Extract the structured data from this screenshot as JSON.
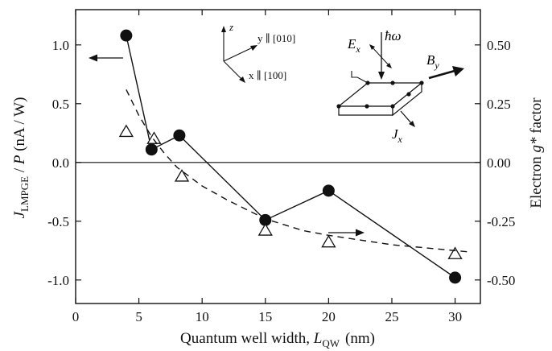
{
  "chart_data": {
    "type": "scatter",
    "x_axis": {
      "label_prefix": "Quantum well width, ",
      "label_var": "L",
      "label_sub": "QW",
      "label_unit": "(nm)",
      "range": [
        0,
        32
      ],
      "ticks": [
        0,
        5,
        10,
        15,
        20,
        25,
        30
      ]
    },
    "y_axis_left": {
      "label_var": "J",
      "label_sub": "LMPGE",
      "label_rest": " / ",
      "label_var2": "P",
      "label_unit": " (nA / W)",
      "range": [
        -1.2,
        1.3
      ],
      "ticks": [
        1.0,
        0.5,
        0.0,
        -0.5,
        -1.0
      ],
      "tick_labels": [
        "1.0",
        "0.5",
        "0.0",
        "-0.5",
        "-1.0"
      ]
    },
    "y_axis_right": {
      "label_prefix": "Electron ",
      "label_var": "g*",
      "label_suffix": " factor",
      "range": [
        -0.6,
        0.65
      ],
      "ticks": [
        0.5,
        0.25,
        0.0,
        -0.25,
        -0.5
      ],
      "tick_labels": [
        "0.50",
        "0.25",
        "0.00",
        "-0.25",
        "-0.50"
      ]
    },
    "series": [
      {
        "marker": "filled-circle",
        "axis": "left",
        "line": "solid",
        "color": "#111111",
        "points": [
          [
            4,
            1.08
          ],
          [
            6,
            0.11
          ],
          [
            8.2,
            0.23
          ],
          [
            15,
            -0.49
          ],
          [
            20,
            -0.24
          ],
          [
            30,
            -0.98
          ]
        ]
      },
      {
        "marker": "open-triangle",
        "axis": "right",
        "line": "none",
        "color": "#111111",
        "points": [
          [
            4,
            0.13
          ],
          [
            6.2,
            0.1
          ],
          [
            8.4,
            -0.06
          ],
          [
            15,
            -0.29
          ],
          [
            20,
            -0.34
          ],
          [
            30,
            -0.39
          ]
        ]
      },
      {
        "marker": "none",
        "axis": "right",
        "line": "dashed",
        "color": "#111111",
        "points": [
          [
            4,
            0.31
          ],
          [
            5,
            0.2
          ],
          [
            6,
            0.11
          ],
          [
            7,
            0.04
          ],
          [
            8,
            -0.02
          ],
          [
            10,
            -0.1
          ],
          [
            12,
            -0.16
          ],
          [
            15,
            -0.24
          ],
          [
            18,
            -0.29
          ],
          [
            20,
            -0.31
          ],
          [
            25,
            -0.35
          ],
          [
            31,
            -0.38
          ]
        ]
      }
    ],
    "zero_line": true
  },
  "inset": {
    "coord_z": "z",
    "coord_y": "y ∥ [010]",
    "coord_x": "x ∥ [100]",
    "photon": "ħω",
    "field_e": "E",
    "field_e_sub": "x",
    "field_b": "B",
    "field_b_sub": "y",
    "current": "J",
    "current_sub": "x"
  }
}
